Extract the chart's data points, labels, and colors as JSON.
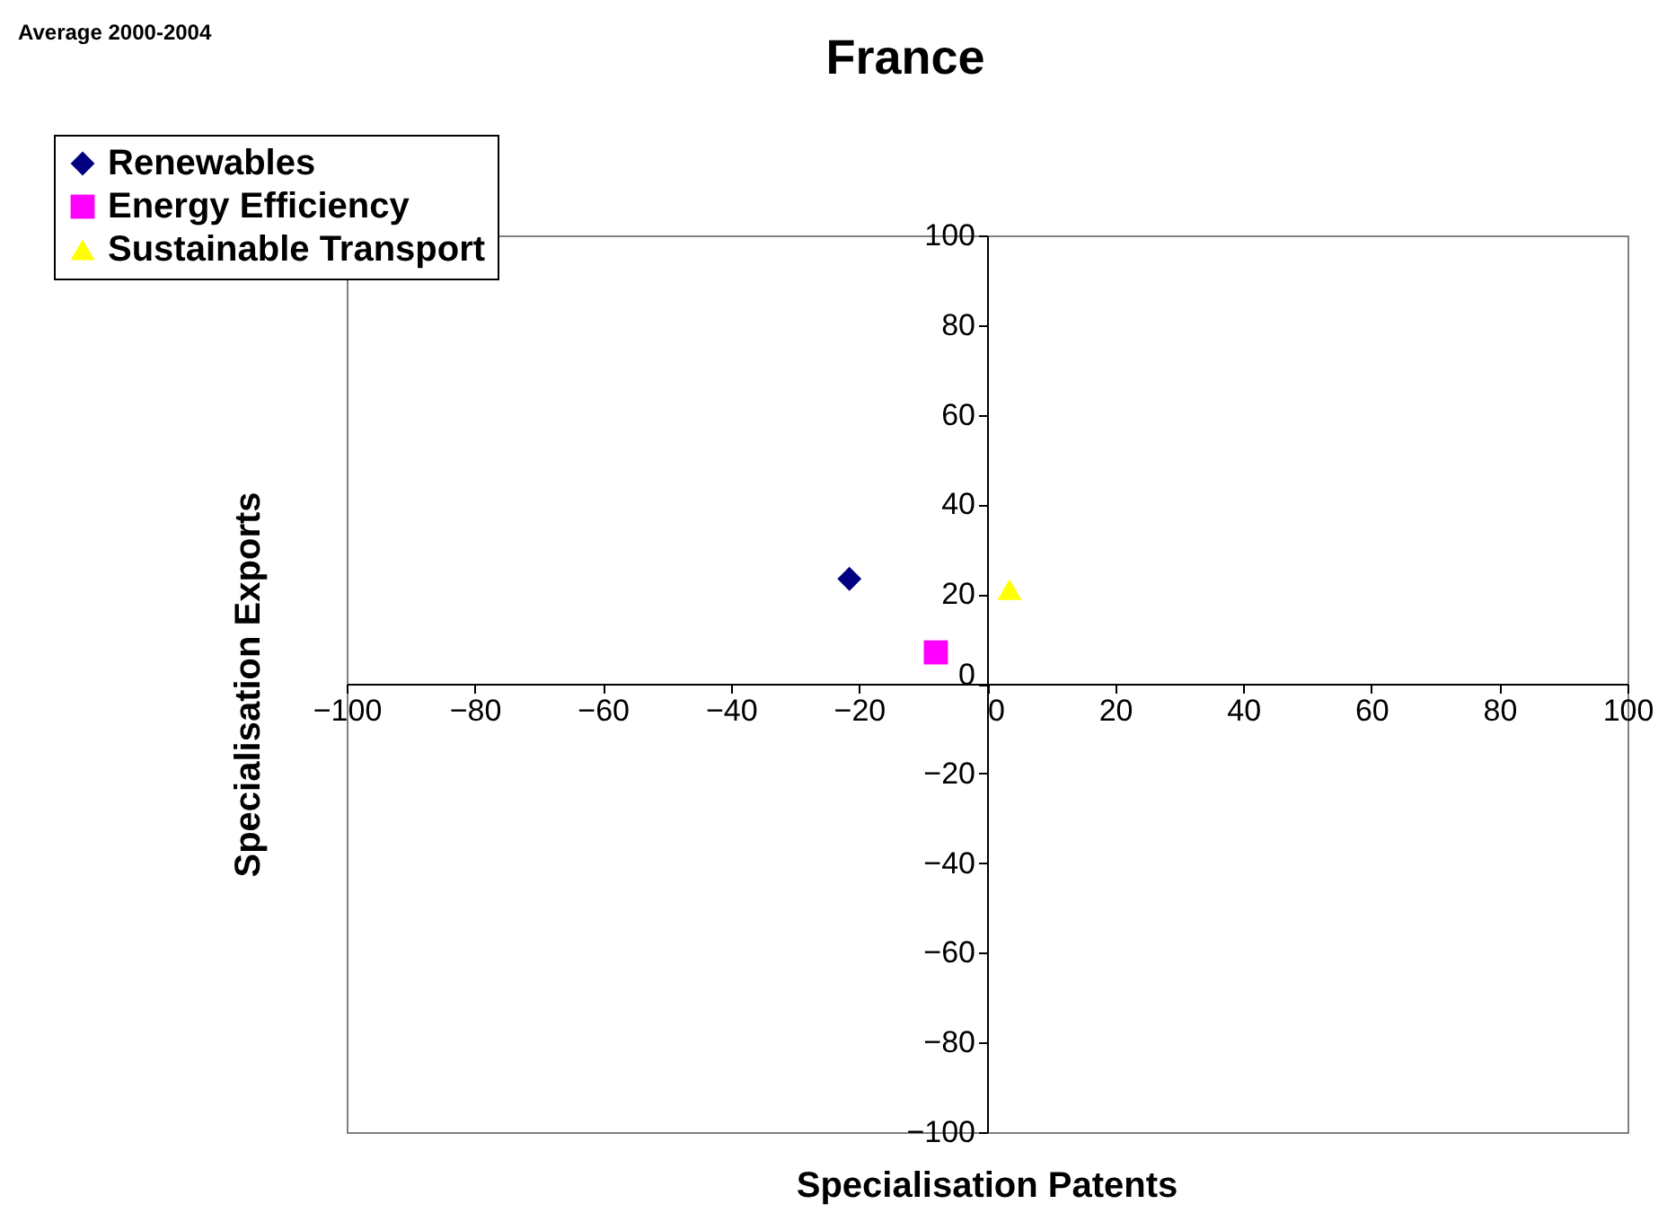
{
  "chart_data": {
    "type": "scatter",
    "title": "France",
    "xlabel": "Specialisation Patents",
    "ylabel": "Specialisation Exports",
    "annotations": [
      "Average 2000-2004"
    ],
    "series": [
      {
        "name": "Renewables",
        "color": "#000080",
        "marker": "diamond",
        "x": [
          -21.5
        ],
        "values": [
          23.4
        ]
      },
      {
        "name": "Energy Efficiency",
        "color": "#ff00ff",
        "marker": "square",
        "x": [
          -8
        ],
        "values": [
          7
        ]
      },
      {
        "name": "Sustainable Transport",
        "color": "#ffff00",
        "marker": "triangle",
        "x": [
          3.5
        ],
        "values": [
          21
        ]
      }
    ],
    "xlim": [
      -100,
      100
    ],
    "ylim": [
      -100,
      100
    ],
    "xticks": [
      -100,
      -80,
      -60,
      -40,
      -20,
      0,
      20,
      40,
      60,
      80,
      100
    ],
    "yticks": [
      -100,
      -80,
      -60,
      -40,
      -20,
      0,
      20,
      40,
      60,
      80,
      100
    ],
    "grid": false,
    "legend": "top left"
  }
}
